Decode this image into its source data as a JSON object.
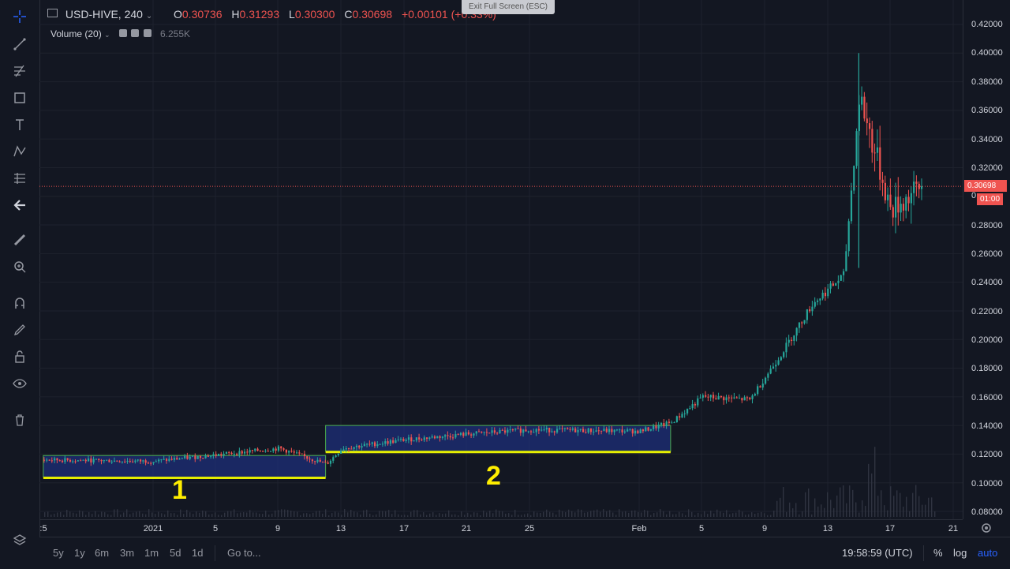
{
  "window": {
    "exit_fullscreen": "Exit Full Screen (ESC)"
  },
  "legend": {
    "symbol": "USD-HIVE, 240",
    "ohlc": [
      {
        "k": "O",
        "v": "0.30736"
      },
      {
        "k": "H",
        "v": "0.31293"
      },
      {
        "k": "L",
        "v": "0.30300"
      },
      {
        "k": "C",
        "v": "0.30698"
      }
    ],
    "change": "+0.00101 (+0.33%)",
    "volume_label": "Volume (20)",
    "volume_value": "6.255K"
  },
  "price_axis": {
    "labels": [
      "0.42000",
      "0.40000",
      "0.38000",
      "0.36000",
      "0.34000",
      "0.32000",
      "0.28000",
      "0.26000",
      "0.24000",
      "0.22000",
      "0.20000",
      "0.18000",
      "0.16000",
      "0.14000",
      "0.12000",
      "0.10000",
      "0.08000"
    ],
    "current_price": "0.30698",
    "countdown": "01:00",
    "zero": "0"
  },
  "time_axis": {
    "labels": [
      ":5",
      "2021",
      "5",
      "9",
      "13",
      "17",
      "21",
      "25",
      "Feb",
      "5",
      "9",
      "13",
      "17",
      "21"
    ]
  },
  "annotations": {
    "box1": "1",
    "box2": "2"
  },
  "bottom_bar": {
    "ranges": [
      "5y",
      "1y",
      "6m",
      "3m",
      "1m",
      "5d",
      "1d"
    ],
    "goto": "Go to...",
    "clock": "19:58:59 (UTC)",
    "percent": "%",
    "log": "log",
    "auto": "auto"
  },
  "toolbar": {
    "icons": [
      "crosshair-icon",
      "trend-line-icon",
      "fib-icon",
      "rectangle-icon",
      "text-icon",
      "pattern-icon",
      "prediction-icon",
      "back-arrow-icon",
      "ruler-icon",
      "zoom-icon",
      "magnet-icon",
      "stay-drawing-icon",
      "lock-icon",
      "eye-icon",
      "trash-icon",
      "layers-icon"
    ]
  },
  "colors": {
    "bg": "#131722",
    "up": "#26a69a",
    "down": "#ef5350",
    "box": "#1e2f7a",
    "box_border": "#4caf50",
    "support": "#e6ee00",
    "accent": "#2962ff"
  },
  "chart_data": {
    "type": "candlestick",
    "title": "",
    "ylim": [
      0.08,
      0.42
    ],
    "x_ticks": [
      "2021",
      "5",
      "9",
      "13",
      "17",
      "21",
      "25",
      "Feb",
      "5",
      "9",
      "13",
      "17",
      "21"
    ],
    "y_ticks": [
      0.08,
      0.1,
      0.12,
      0.14,
      0.16,
      0.18,
      0.2,
      0.22,
      0.24,
      0.26,
      0.28,
      0.3,
      0.32,
      0.34,
      0.36,
      0.38,
      0.4,
      0.42
    ],
    "last_close": 0.30698,
    "consolidation_boxes": [
      {
        "label": "1",
        "start": "Dec 25",
        "end": "Jan 12",
        "low": 0.104,
        "high": 0.119
      },
      {
        "label": "2",
        "start": "Jan 12",
        "end": "Feb 3",
        "low": 0.122,
        "high": 0.14
      }
    ],
    "trend": [
      {
        "x": "Dec 25",
        "y": 0.116
      },
      {
        "x": "Jan 1",
        "y": 0.115
      },
      {
        "x": "Jan 9",
        "y": 0.124
      },
      {
        "x": "Jan 12",
        "y": 0.113
      },
      {
        "x": "Jan 13",
        "y": 0.124
      },
      {
        "x": "Jan 17",
        "y": 0.13
      },
      {
        "x": "Jan 21",
        "y": 0.134
      },
      {
        "x": "Jan 25",
        "y": 0.137
      },
      {
        "x": "Feb 1",
        "y": 0.136
      },
      {
        "x": "Feb 3",
        "y": 0.142
      },
      {
        "x": "Feb 5",
        "y": 0.16
      },
      {
        "x": "Feb 8",
        "y": 0.158
      },
      {
        "x": "Feb 10",
        "y": 0.19
      },
      {
        "x": "Feb 12",
        "y": 0.225
      },
      {
        "x": "Feb 14",
        "y": 0.245
      },
      {
        "x": "Feb 15",
        "y": 0.37
      },
      {
        "x": "Feb 16",
        "y": 0.33
      },
      {
        "x": "Feb 17",
        "y": 0.29
      },
      {
        "x": "Feb 19",
        "y": 0.307
      }
    ]
  }
}
